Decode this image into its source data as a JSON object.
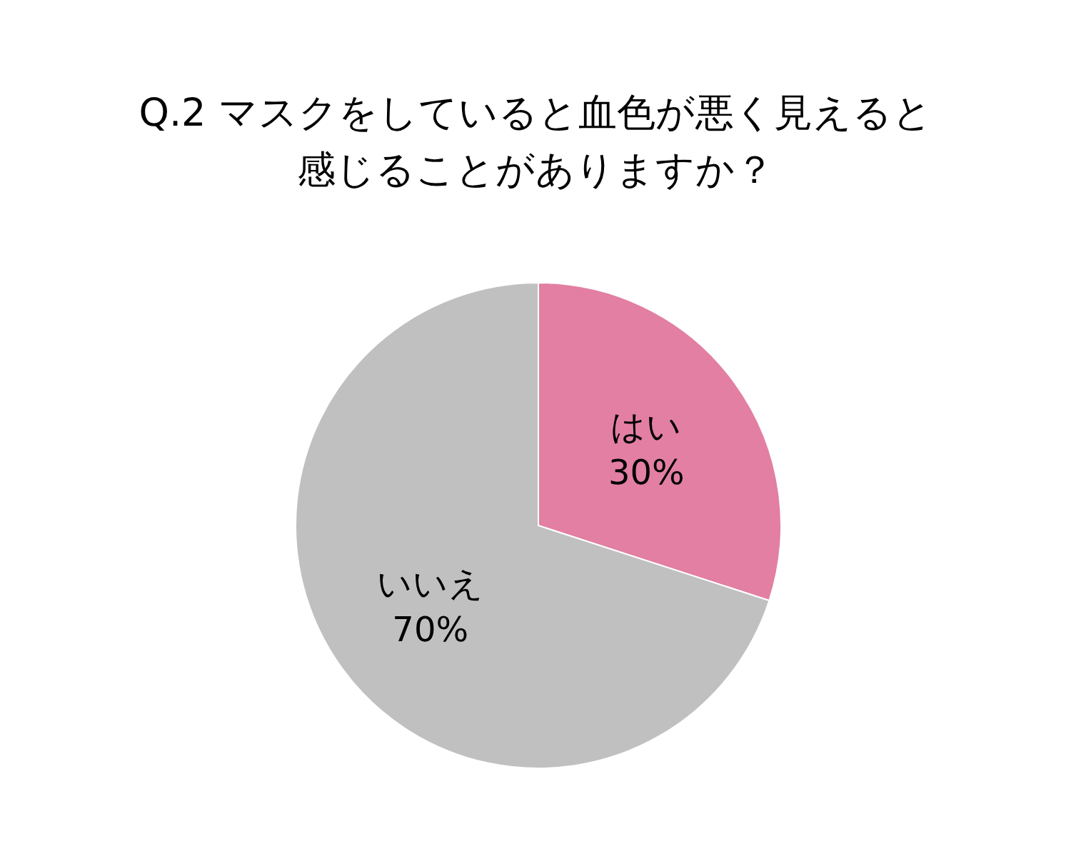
{
  "chart_data": {
    "type": "pie",
    "title": "Q.2 マスクをしていると血色が悪く見えると感じることがありますか？",
    "categories": [
      "はい",
      "いいえ"
    ],
    "values": [
      30,
      70
    ],
    "colors": [
      "#e27fa2",
      "#c0c0c0"
    ],
    "value_labels": [
      "30%",
      "70%"
    ]
  }
}
